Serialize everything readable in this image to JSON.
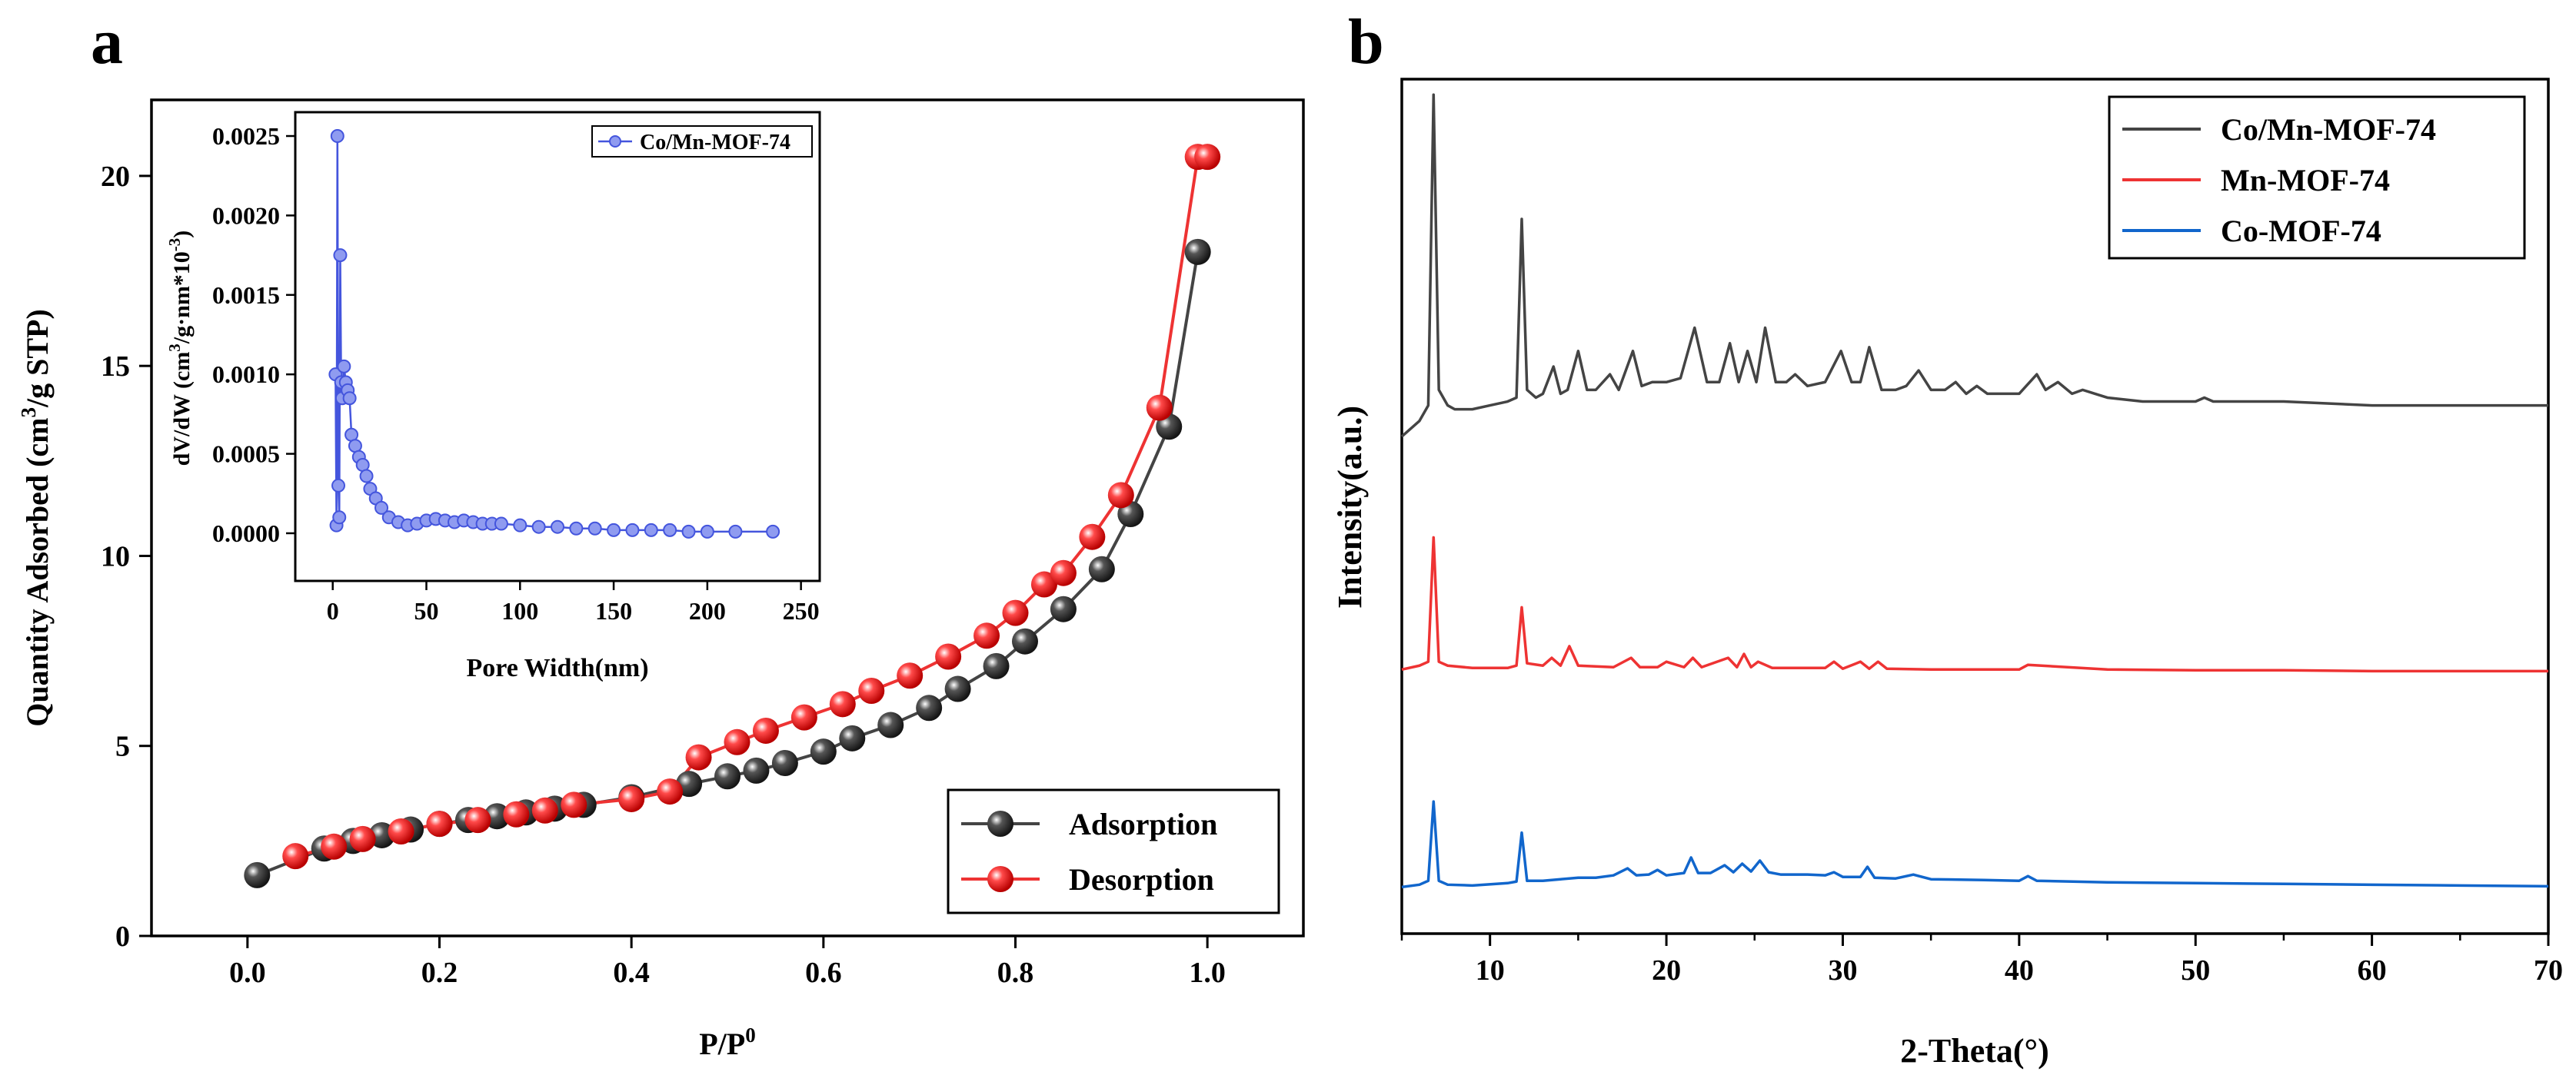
{
  "panels": {
    "a": {
      "label": "a"
    },
    "b": {
      "label": "b"
    }
  },
  "chart_data": [
    {
      "panel": "a",
      "type": "scatter",
      "title": "",
      "xlabel": "P/P",
      "xlabel_superscript": "0",
      "ylabel": "Quantity Adsorbed  (cm",
      "ylabel_superscript": "3",
      "ylabel_suffix": "/g STP)",
      "xlim": [
        -0.1,
        1.1
      ],
      "ylim": [
        0,
        22
      ],
      "xticks": [
        0.0,
        0.2,
        0.4,
        0.6,
        0.8,
        1.0
      ],
      "xtick_labels": [
        "0.0",
        "0.2",
        "0.4",
        "0.6",
        "0.8",
        "1.0"
      ],
      "yticks": [
        0,
        5,
        10,
        15,
        20
      ],
      "ytick_labels": [
        "0",
        "5",
        "10",
        "15",
        "20"
      ],
      "legend": "bottom-right",
      "series": [
        {
          "name": "Adsorption",
          "color": "#444444",
          "x": [
            0.01,
            0.08,
            0.11,
            0.14,
            0.17,
            0.2,
            0.23,
            0.26,
            0.29,
            0.32,
            0.35,
            0.4,
            0.46,
            0.5,
            0.53,
            0.56,
            0.6,
            0.63,
            0.67,
            0.71,
            0.74,
            0.78,
            0.81,
            0.85,
            0.89,
            0.92,
            0.96,
            0.99
          ],
          "y": [
            1.6,
            2.3,
            2.5,
            2.65,
            2.8,
            2.95,
            3.05,
            3.15,
            3.25,
            3.35,
            3.45,
            3.65,
            4.0,
            4.2,
            4.35,
            4.55,
            4.85,
            5.2,
            5.55,
            6.0,
            6.5,
            7.1,
            7.75,
            8.6,
            9.65,
            11.1,
            13.4,
            18.0
          ]
        },
        {
          "name": "Desorption",
          "color": "#ee3333",
          "x": [
            0.05,
            0.09,
            0.12,
            0.16,
            0.2,
            0.24,
            0.28,
            0.31,
            0.34,
            0.4,
            0.44,
            0.47,
            0.51,
            0.54,
            0.58,
            0.62,
            0.65,
            0.69,
            0.73,
            0.77,
            0.8,
            0.83,
            0.85,
            0.88,
            0.91,
            0.95,
            0.99,
            1.0
          ],
          "y": [
            2.1,
            2.35,
            2.55,
            2.75,
            2.95,
            3.05,
            3.2,
            3.3,
            3.45,
            3.6,
            3.8,
            4.7,
            5.1,
            5.4,
            5.75,
            6.1,
            6.45,
            6.85,
            7.35,
            7.9,
            8.5,
            9.25,
            9.55,
            10.5,
            11.6,
            13.9,
            20.5,
            20.5
          ]
        }
      ]
    },
    {
      "panel": "a-inset",
      "type": "line",
      "title": "",
      "xlabel": "Pore Width(nm)",
      "ylabel": "dV/dW (cm",
      "ylabel_superscript": "3",
      "ylabel_mid": "/g·nm*10",
      "ylabel_superscript2": "-3",
      "ylabel_suffix": ")",
      "xlim": [
        -20,
        260
      ],
      "ylim": [
        -0.0003,
        0.00265
      ],
      "xticks": [
        0,
        50,
        100,
        150,
        200,
        250
      ],
      "xtick_labels": [
        "0",
        "50",
        "100",
        "150",
        "200",
        "250"
      ],
      "yticks": [
        0.0,
        0.0005,
        0.001,
        0.0015,
        0.002,
        0.0025
      ],
      "ytick_labels": [
        "0.0000",
        "0.0005",
        "0.0010",
        "0.0015",
        "0.0020",
        "0.0025"
      ],
      "legend": "top-right",
      "series": [
        {
          "name": "Co/Mn-MOF-74",
          "color": "#4455dd",
          "x": [
            1.5,
            2,
            2.5,
            3,
            3.5,
            4,
            4.5,
            5,
            6,
            7,
            8,
            9,
            10,
            12,
            14,
            16,
            18,
            20,
            23,
            26,
            30,
            35,
            40,
            45,
            50,
            55,
            60,
            65,
            70,
            75,
            80,
            85,
            90,
            100,
            110,
            120,
            130,
            140,
            150,
            160,
            170,
            180,
            190,
            200,
            215,
            235
          ],
          "y": [
            0.001,
            5e-05,
            0.0025,
            0.0003,
            0.0001,
            0.00175,
            0.00095,
            0.00085,
            0.00105,
            0.00095,
            0.0009,
            0.00085,
            0.00062,
            0.00055,
            0.00048,
            0.00043,
            0.00036,
            0.00028,
            0.00022,
            0.00016,
            0.0001,
            7e-05,
            5e-05,
            6e-05,
            8e-05,
            9e-05,
            8e-05,
            7e-05,
            8e-05,
            7e-05,
            6e-05,
            6e-05,
            6e-05,
            5e-05,
            4e-05,
            4e-05,
            3e-05,
            3e-05,
            2e-05,
            2e-05,
            2e-05,
            2e-05,
            1e-05,
            1e-05,
            1e-05,
            1e-05
          ]
        }
      ]
    },
    {
      "panel": "b",
      "type": "line",
      "title": "",
      "xlabel": "2-Theta(°)",
      "ylabel": "Intensity(a.u.)",
      "xlim": [
        5,
        70
      ],
      "ylim": [
        0,
        110
      ],
      "xticks": [
        10,
        20,
        30,
        40,
        50,
        60,
        70
      ],
      "xtick_labels": [
        "10",
        "20",
        "30",
        "40",
        "50",
        "60",
        "70"
      ],
      "yticks": [],
      "legend": "top-right",
      "series": [
        {
          "name": "Co/Mn-MOF-74",
          "color": "#444444",
          "x": [
            5,
            6,
            6.5,
            6.8,
            7.1,
            7.6,
            8,
            9,
            10,
            11,
            11.5,
            11.8,
            12.1,
            12.6,
            13,
            13.6,
            14,
            14.4,
            15,
            15.5,
            16,
            16.8,
            17.3,
            18.1,
            18.6,
            19.2,
            20,
            20.8,
            21.6,
            22.3,
            23,
            23.6,
            24.1,
            24.6,
            25.1,
            25.6,
            26.2,
            26.8,
            27.3,
            28,
            29,
            29.9,
            30.5,
            31,
            31.5,
            32.2,
            33,
            33.6,
            34.3,
            35,
            35.8,
            36.4,
            37,
            37.6,
            38.2,
            39,
            40,
            41,
            41.5,
            42.2,
            43,
            43.6,
            44.3,
            45,
            47,
            50,
            50.5,
            51,
            55,
            60,
            65,
            70
          ],
          "y": [
            64,
            66,
            68,
            108,
            70,
            68,
            67.5,
            67.5,
            68,
            68.5,
            69,
            92,
            70,
            69,
            69.5,
            73,
            69.5,
            70,
            75,
            70,
            70,
            72,
            70,
            75,
            70.5,
            71,
            71,
            71.5,
            78,
            71,
            71,
            76,
            71,
            75,
            71,
            78,
            71,
            71,
            72,
            70.5,
            71,
            75,
            71,
            71,
            75.5,
            70,
            70,
            70.5,
            72.5,
            70,
            70,
            71,
            69.5,
            70.5,
            69.5,
            69.5,
            69.5,
            72,
            70,
            71,
            69.5,
            70,
            69.5,
            69,
            68.5,
            68.5,
            69,
            68.5,
            68.5,
            68,
            68,
            68
          ]
        },
        {
          "name": "Mn-MOF-74",
          "color": "#ee3333",
          "x": [
            5,
            6,
            6.5,
            6.8,
            7.1,
            7.6,
            9,
            11,
            11.5,
            11.8,
            12.1,
            13,
            13.5,
            14,
            14.5,
            15,
            17,
            18,
            18.5,
            19.5,
            20,
            21,
            21.5,
            22,
            23.5,
            24,
            24.4,
            24.8,
            25.2,
            26,
            29,
            29.5,
            30,
            31,
            31.5,
            32,
            32.5,
            35,
            40,
            40.5,
            45,
            50,
            55,
            60,
            65,
            70
          ],
          "y": [
            34,
            34.5,
            35,
            51,
            35,
            34.5,
            34.2,
            34.2,
            34.5,
            42,
            34.8,
            34.5,
            35.5,
            34.5,
            37,
            34.5,
            34.3,
            35.5,
            34.3,
            34.3,
            35,
            34.3,
            35.5,
            34.3,
            35.5,
            34.3,
            36,
            34.3,
            35,
            34.2,
            34.2,
            35,
            34.1,
            35,
            34.1,
            35,
            34.1,
            34,
            34,
            34.6,
            34,
            33.9,
            33.9,
            33.8,
            33.8,
            33.8
          ]
        },
        {
          "name": "Co-MOF-74",
          "color": "#1166cc",
          "x": [
            5,
            6,
            6.5,
            6.8,
            7.1,
            7.6,
            9,
            11,
            11.5,
            11.8,
            12.1,
            13,
            14,
            15,
            16,
            17,
            17.8,
            18.3,
            19,
            19.5,
            20,
            21,
            21.4,
            21.8,
            22.5,
            23.3,
            23.8,
            24.3,
            24.8,
            25.3,
            25.8,
            26.5,
            28,
            29,
            29.5,
            30,
            31,
            31.4,
            31.8,
            33,
            34,
            35,
            38,
            40,
            40.5,
            41,
            45,
            50,
            55,
            60,
            65,
            70
          ],
          "y": [
            6,
            6.3,
            6.8,
            17,
            6.8,
            6.3,
            6.2,
            6.5,
            6.7,
            13,
            6.8,
            6.8,
            7,
            7.2,
            7.2,
            7.5,
            8.4,
            7.5,
            7.6,
            8.2,
            7.5,
            7.8,
            9.8,
            7.8,
            7.8,
            8.8,
            7.9,
            9,
            8,
            9.4,
            7.9,
            7.6,
            7.6,
            7.5,
            7.9,
            7.3,
            7.3,
            8.6,
            7.2,
            7.1,
            7.6,
            7,
            6.9,
            6.8,
            7.4,
            6.8,
            6.6,
            6.5,
            6.4,
            6.3,
            6.2,
            6.1
          ]
        }
      ]
    }
  ]
}
